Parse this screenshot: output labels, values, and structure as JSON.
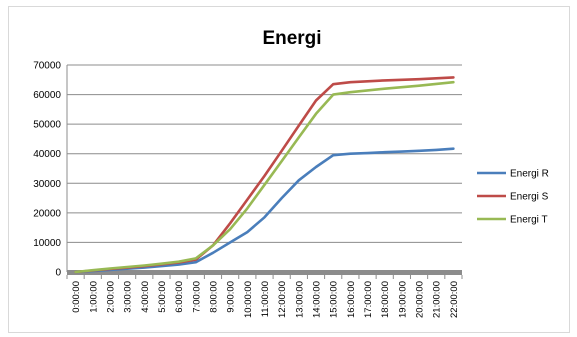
{
  "chart_data": {
    "type": "line",
    "title": "Energi",
    "xlabel": "",
    "ylabel": "",
    "ylim": [
      0,
      70000
    ],
    "yticks": [
      "0",
      "10000",
      "20000",
      "30000",
      "40000",
      "50000",
      "60000",
      "70000"
    ],
    "x": [
      "0:00:00",
      "1:00:00",
      "2:00:00",
      "3:00:00",
      "4:00:00",
      "5:00:00",
      "6:00:00",
      "7:00:00",
      "8:00:00",
      "9:00:00",
      "10:00:00",
      "11:00:00",
      "12:00:00",
      "13:00:00",
      "14:00:00",
      "15:00:00",
      "16:00:00",
      "17:00:00",
      "18:00:00",
      "19:00:00",
      "20:00:00",
      "21:00:00",
      "22:00:00"
    ],
    "grid": true,
    "legend_position": "right",
    "series": [
      {
        "name": "Energi R",
        "color": "#4a7ebb",
        "values": [
          0,
          300,
          700,
          1100,
          1500,
          2000,
          2500,
          3300,
          6500,
          10000,
          13500,
          18500,
          25000,
          31000,
          35500,
          39500,
          40000,
          40200,
          40500,
          40700,
          41000,
          41300,
          41700
        ]
      },
      {
        "name": "Energi S",
        "color": "#be4b48",
        "values": [
          0,
          500,
          1000,
          1500,
          2000,
          2600,
          3200,
          4200,
          9000,
          16500,
          24500,
          32500,
          41000,
          49500,
          58000,
          63500,
          64200,
          64500,
          64800,
          65000,
          65200,
          65500,
          65800
        ]
      },
      {
        "name": "Energi T",
        "color": "#98b954",
        "values": [
          0,
          600,
          1200,
          1700,
          2200,
          2800,
          3500,
          4600,
          9000,
          14500,
          21500,
          29500,
          37500,
          45500,
          53500,
          60000,
          60800,
          61400,
          62000,
          62500,
          63000,
          63600,
          64200
        ]
      }
    ]
  }
}
